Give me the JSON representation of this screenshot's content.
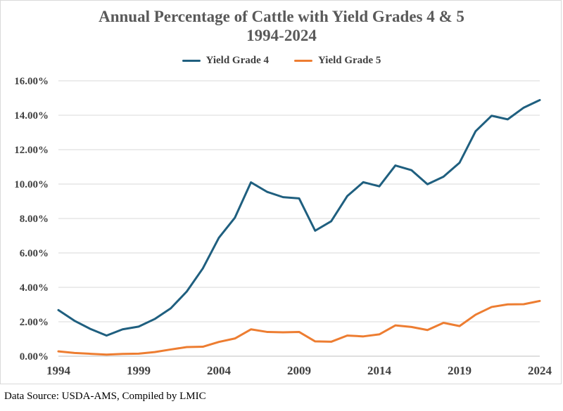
{
  "chart_data": {
    "type": "line",
    "title": "Annual Percentage of Cattle with Yield Grades 4 & 5",
    "subtitle": "1994-2024",
    "xlabel": "",
    "ylabel": "",
    "x": [
      1994,
      1995,
      1996,
      1997,
      1998,
      1999,
      2000,
      2001,
      2002,
      2003,
      2004,
      2005,
      2006,
      2007,
      2008,
      2009,
      2010,
      2011,
      2012,
      2013,
      2014,
      2015,
      2016,
      2017,
      2018,
      2019,
      2020,
      2021,
      2022,
      2023,
      2024
    ],
    "x_tick_labels": [
      "1994",
      "1999",
      "2004",
      "2009",
      "2014",
      "2019",
      "2024"
    ],
    "y_tick_labels": [
      "0.00%",
      "2.00%",
      "4.00%",
      "6.00%",
      "8.00%",
      "10.00%",
      "12.00%",
      "14.00%",
      "16.00%"
    ],
    "ylim": [
      0,
      16
    ],
    "xlim": [
      1994,
      2024
    ],
    "grid": "horizontal",
    "legend_position": "top",
    "series": [
      {
        "name": "Yield Grade 4",
        "color": "#1f5f7f",
        "values": [
          2.68,
          2.06,
          1.58,
          1.2,
          1.56,
          1.72,
          2.16,
          2.78,
          3.76,
          5.1,
          6.88,
          8.05,
          10.1,
          9.55,
          9.24,
          9.17,
          7.29,
          7.84,
          9.3,
          10.11,
          9.87,
          11.08,
          10.81,
          9.99,
          10.43,
          11.24,
          13.07,
          13.97,
          13.76,
          14.44,
          14.88
        ]
      },
      {
        "name": "Yield Grade 5",
        "color": "#ed7d31",
        "values": [
          0.28,
          0.19,
          0.14,
          0.09,
          0.13,
          0.15,
          0.24,
          0.39,
          0.53,
          0.55,
          0.83,
          1.03,
          1.56,
          1.41,
          1.39,
          1.41,
          0.86,
          0.84,
          1.2,
          1.15,
          1.27,
          1.79,
          1.7,
          1.52,
          1.94,
          1.75,
          2.41,
          2.86,
          3.01,
          3.02,
          3.21
        ]
      }
    ]
  },
  "footer": {
    "source": "Data Source: USDA-AMS, Compiled by LMIC"
  }
}
